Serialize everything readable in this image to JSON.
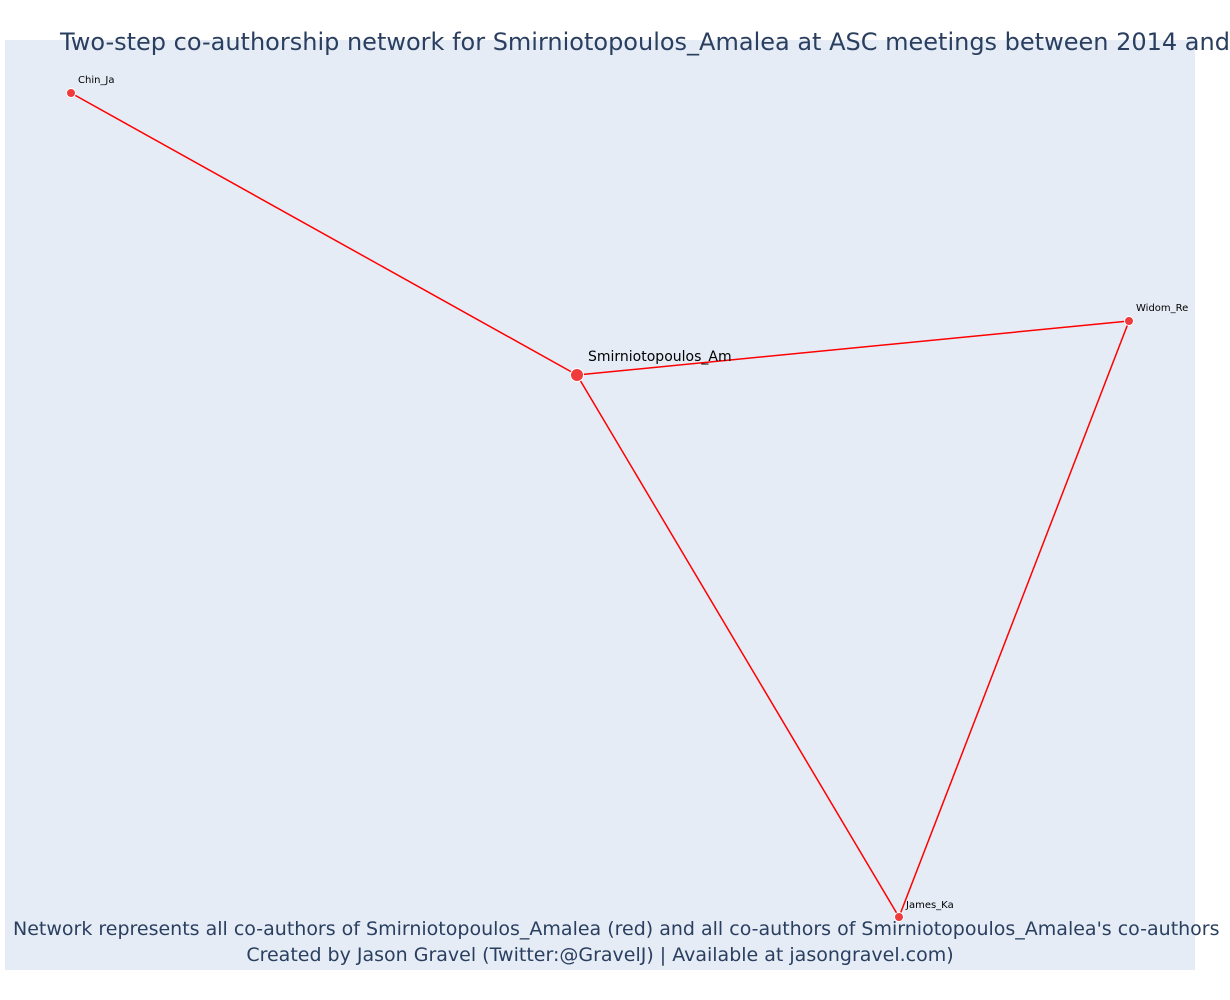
{
  "title": "Two-step co-authorship network for Smirniotopoulos_Amalea at ASC meetings between 2014 and",
  "caption": {
    "line1": "Network represents all co-authors of Smirniotopoulos_Amalea (red) and all co-authors of Smirniotopoulos_Amalea's co-authors",
    "line2": "Created by Jason Gravel (Twitter:@GravelJ) | Available at jasongravel.com)"
  },
  "colors": {
    "edge": "#ff0000",
    "node": "#ef3b3b",
    "node_outline": "#ffffff",
    "plot_bg": "#e5ecf6",
    "text": "#2a3f5f"
  },
  "nodes": {
    "center": {
      "label": "Smirniotopoulos_Am"
    },
    "chin": {
      "label": "Chin_Ja"
    },
    "widom": {
      "label": "Widom_Re"
    },
    "james": {
      "label": "James_Ka"
    }
  },
  "edges": [
    [
      "center",
      "chin"
    ],
    [
      "center",
      "widom"
    ],
    [
      "center",
      "james"
    ],
    [
      "widom",
      "james"
    ]
  ]
}
